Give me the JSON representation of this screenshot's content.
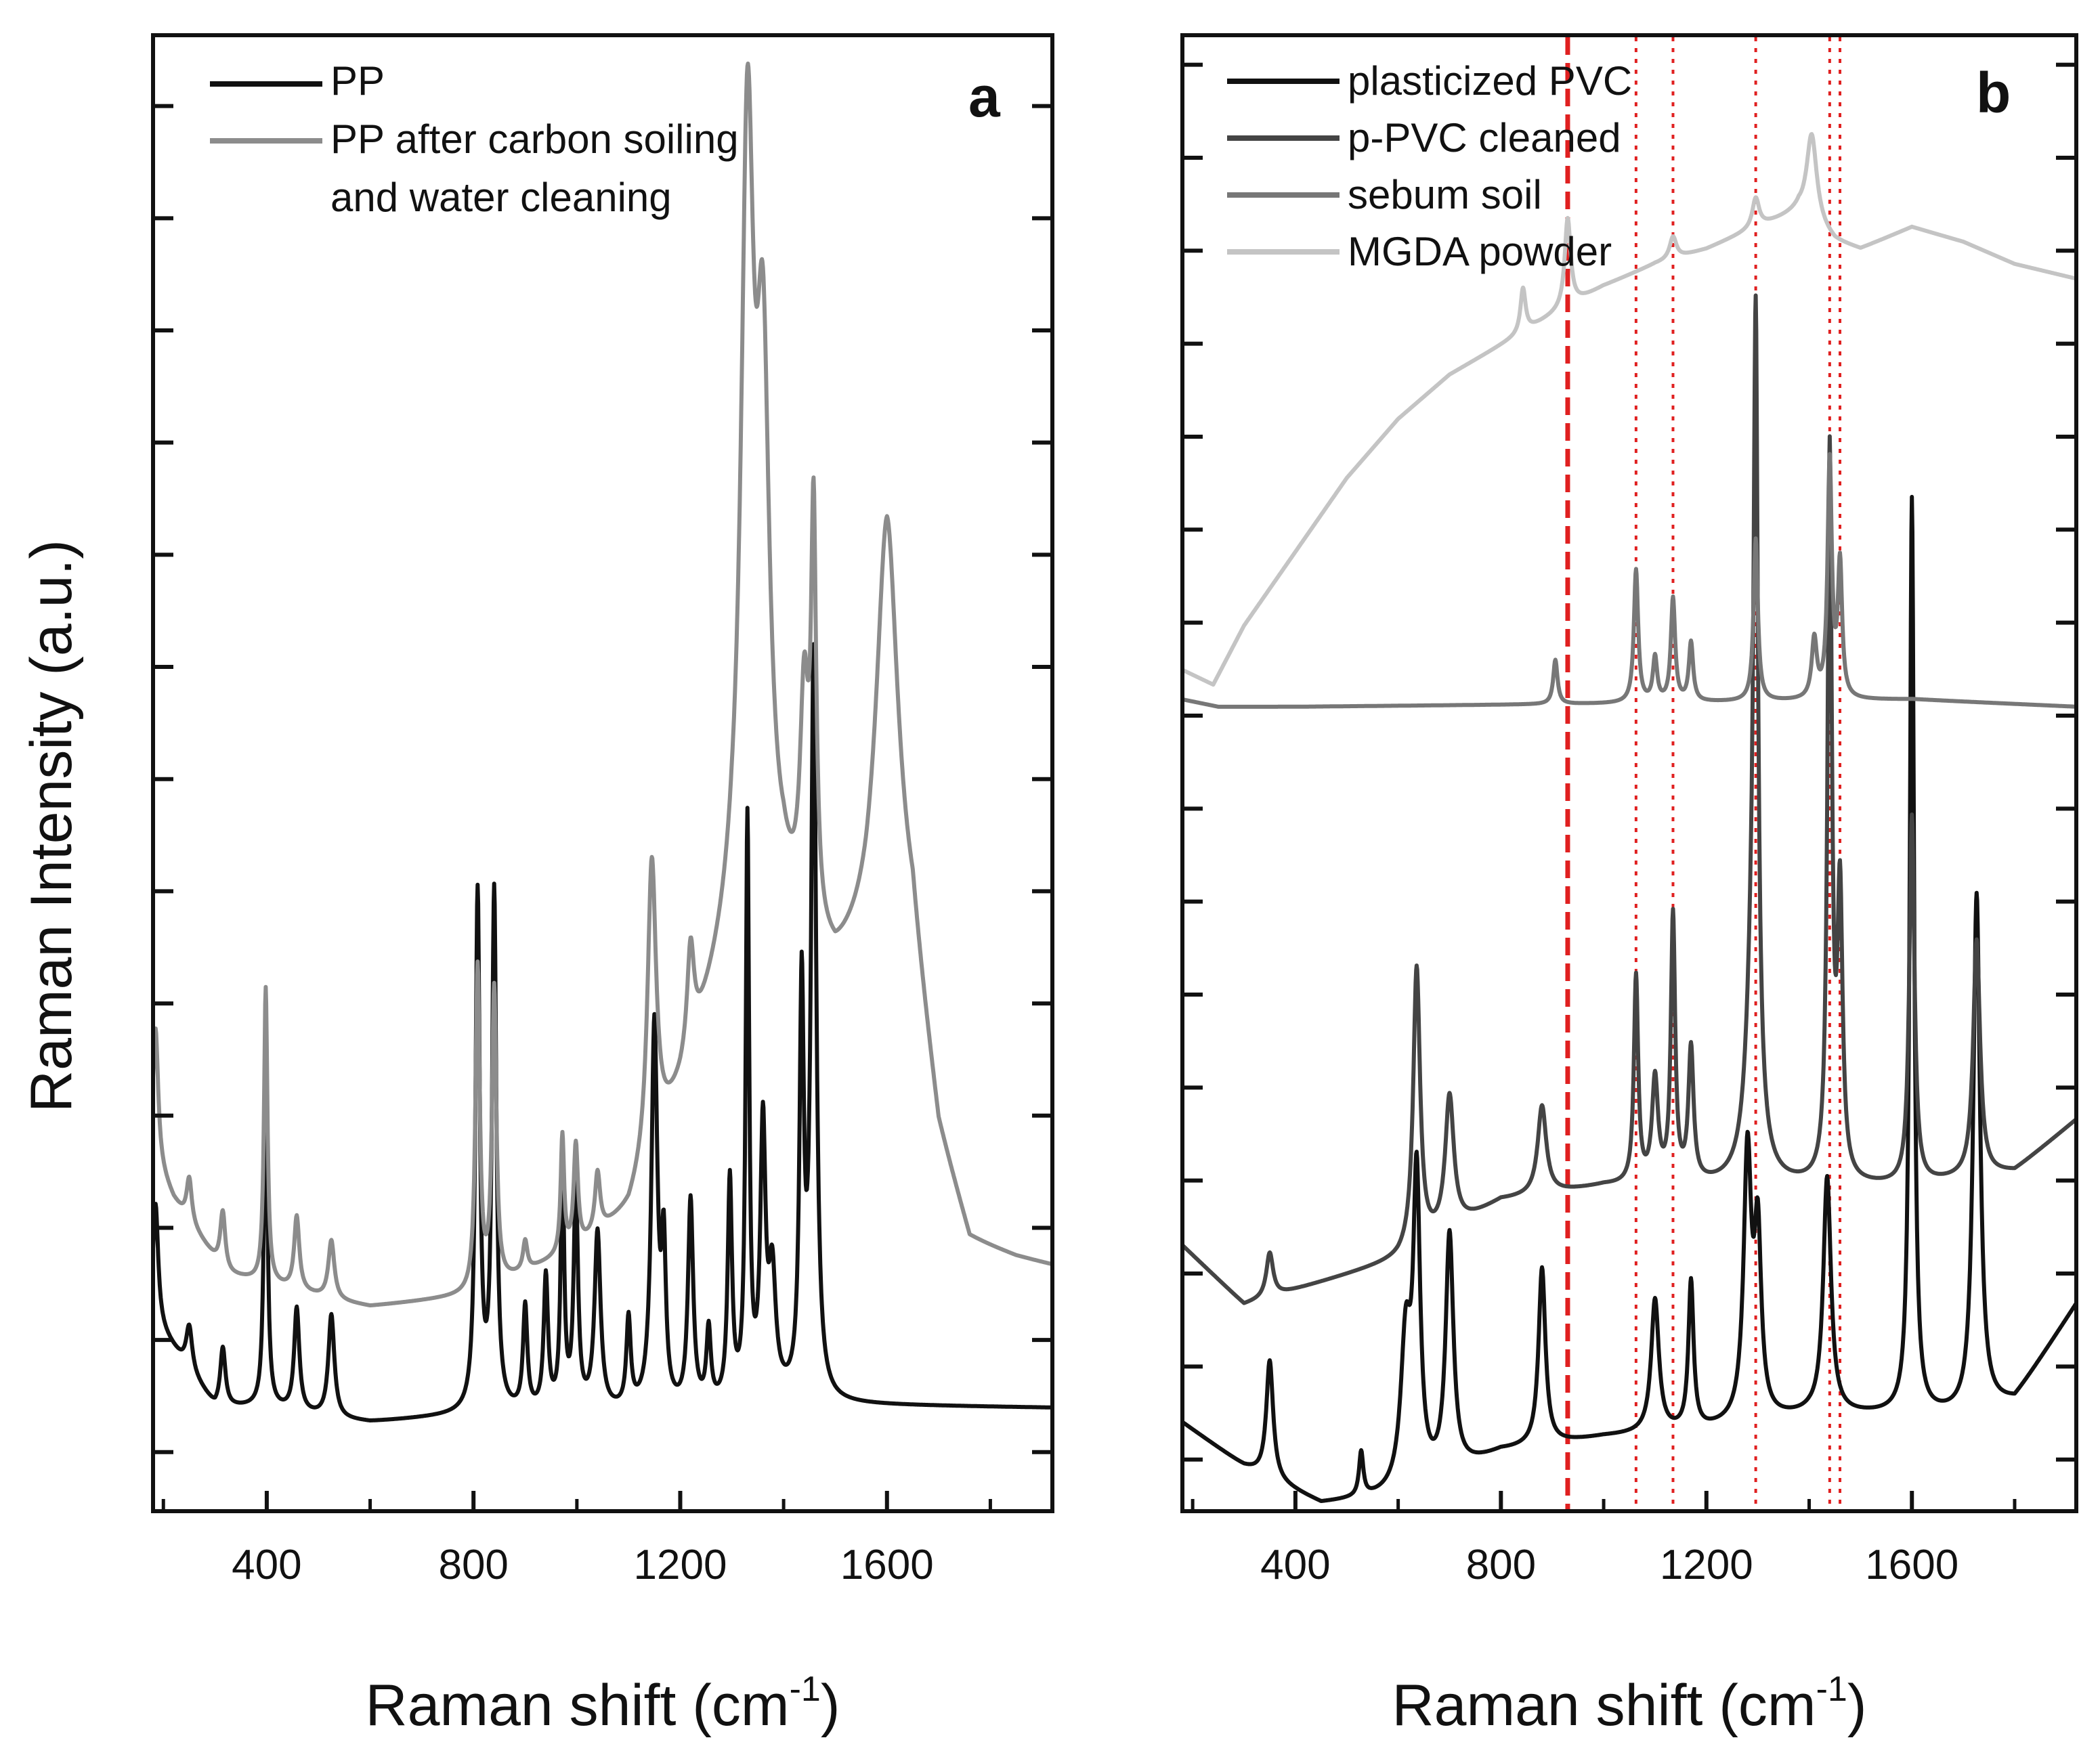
{
  "figure": {
    "y_axis_label": "Raman Intensity (a.u.)",
    "x_axis_label_main": "Raman shift (cm",
    "x_axis_label_sup": "-1",
    "x_axis_label_close": ")"
  },
  "chart_data": [
    {
      "type": "line",
      "panel_label": "a",
      "xlabel": "Raman shift (cm-1)",
      "ylabel": "Raman Intensity (a.u.)",
      "xlim": [
        180,
        1920
      ],
      "ylim": [
        0,
        100
      ],
      "xticks": [
        400,
        800,
        1200,
        1600
      ],
      "xtick_labels": [
        "400",
        "800",
        "1200",
        "1600"
      ],
      "ytick_values": [
        4,
        11.6,
        19.2,
        26.8,
        34.4,
        42,
        49.6,
        57.2,
        64.8,
        72.4,
        80,
        87.6,
        95.2
      ],
      "legend_position": "top-left",
      "series": [
        {
          "name": "PP",
          "legend_lines": [
            "PP"
          ],
          "color": "#111111",
          "baseline": [
            [
              180,
              13
            ],
            [
              200,
              12
            ],
            [
              300,
              7
            ],
            [
              400,
              7
            ],
            [
              530,
              6.2
            ],
            [
              600,
              6
            ],
            [
              800,
              6.5
            ],
            [
              1000,
              6.6
            ],
            [
              1200,
              6.6
            ],
            [
              1400,
              7.4
            ],
            [
              1500,
              7.2
            ],
            [
              1920,
              7
            ]
          ],
          "peaks": [
            [
              185,
              8,
              6
            ],
            [
              250,
              3,
              7
            ],
            [
              315,
              4,
              6
            ],
            [
              398,
              24,
              4
            ],
            [
              458,
              7,
              6
            ],
            [
              525,
              7,
              7
            ],
            [
              808,
              35,
              5
            ],
            [
              840,
              35,
              5
            ],
            [
              900,
              7,
              5
            ],
            [
              940,
              9,
              5
            ],
            [
              972,
              17,
              4
            ],
            [
              998,
              15,
              5
            ],
            [
              1040,
              12,
              7
            ],
            [
              1100,
              6,
              5
            ],
            [
              1150,
              26,
              7
            ],
            [
              1168,
              10,
              5
            ],
            [
              1220,
              14,
              6
            ],
            [
              1255,
              5,
              5
            ],
            [
              1296,
              15,
              5
            ],
            [
              1330,
              39,
              4
            ],
            [
              1360,
              18,
              6
            ],
            [
              1378,
              8,
              8
            ],
            [
              1435,
              27,
              5
            ],
            [
              1458,
              50,
              6
            ]
          ]
        },
        {
          "name": "PP after carbon soiling and water cleaning",
          "legend_lines": [
            "PP after carbon soiling",
            "and water cleaning"
          ],
          "color": "#8c8c8c",
          "baseline": [
            [
              180,
              24
            ],
            [
              220,
              21
            ],
            [
              320,
              16
            ],
            [
              420,
              15.2
            ],
            [
              530,
              14.2
            ],
            [
              600,
              13.8
            ],
            [
              800,
              14.5
            ],
            [
              900,
              16
            ],
            [
              1000,
              17.5
            ],
            [
              1100,
              20
            ],
            [
              1200,
              28
            ],
            [
              1300,
              38
            ],
            [
              1400,
              40
            ],
            [
              1430,
              38
            ],
            [
              1500,
              36
            ],
            [
              1560,
              38
            ],
            [
              1600,
              41
            ],
            [
              1650,
              38
            ],
            [
              1700,
              25
            ],
            [
              1760,
              18
            ],
            [
              1850,
              17
            ],
            [
              1920,
              16.5
            ]
          ],
          "peaks": [
            [
              185,
              9,
              6
            ],
            [
              250,
              3,
              6
            ],
            [
              315,
              4,
              6
            ],
            [
              398,
              20,
              4
            ],
            [
              458,
              5,
              6
            ],
            [
              525,
              4,
              7
            ],
            [
              808,
              22,
              5
            ],
            [
              840,
              20,
              5
            ],
            [
              900,
              2,
              5
            ],
            [
              972,
              8,
              4
            ],
            [
              998,
              7,
              5
            ],
            [
              1040,
              4,
              6
            ],
            [
              1145,
              20,
              10
            ],
            [
              1220,
              7,
              8
            ],
            [
              1330,
              52,
              15
            ],
            [
              1360,
              34,
              15
            ],
            [
              1440,
              15,
              10
            ],
            [
              1458,
              27,
              6
            ],
            [
              1600,
              26,
              25
            ]
          ]
        }
      ]
    },
    {
      "type": "line",
      "panel_label": "b",
      "xlabel": "Raman shift (cm-1)",
      "ylabel": "Raman Intensity (a.u.)",
      "xlim": [
        180,
        1920
      ],
      "ylim": [
        0,
        100
      ],
      "xticks": [
        400,
        800,
        1200,
        1600
      ],
      "xtick_labels": [
        "400",
        "800",
        "1200",
        "1600"
      ],
      "ytick_values": [
        3.5,
        9.8,
        16.1,
        22.4,
        28.7,
        35,
        41.3,
        47.6,
        53.9,
        60.2,
        66.5,
        72.8,
        79.1,
        85.4,
        91.7,
        98
      ],
      "legend_position": "top-left",
      "reference_lines": [
        {
          "x": 930,
          "style": "dashed"
        },
        {
          "x": 1063,
          "style": "dotted"
        },
        {
          "x": 1135,
          "style": "dotted"
        },
        {
          "x": 1296,
          "style": "dotted"
        },
        {
          "x": 1440,
          "style": "dotted"
        },
        {
          "x": 1460,
          "style": "dotted"
        }
      ],
      "reference_line_color": "#e02020",
      "series": [
        {
          "name": "plasticized PVC",
          "legend_lines": [
            "plasticized PVC"
          ],
          "color": "#111111",
          "baseline": [
            [
              180,
              6
            ],
            [
              300,
              3
            ],
            [
              450,
              0.5
            ],
            [
              600,
              1
            ],
            [
              700,
              2.5
            ],
            [
              800,
              4
            ],
            [
              1000,
              5
            ],
            [
              1200,
              5.5
            ],
            [
              1400,
              6.5
            ],
            [
              1550,
              6.5
            ],
            [
              1700,
              6.5
            ],
            [
              1800,
              7.5
            ],
            [
              1920,
              14
            ]
          ],
          "peaks": [
            [
              350,
              8,
              8
            ],
            [
              528,
              3,
              5
            ],
            [
              615,
              10,
              12
            ],
            [
              636,
              20,
              8
            ],
            [
              700,
              16,
              9
            ],
            [
              880,
              12,
              8
            ],
            [
              1100,
              9,
              9
            ],
            [
              1170,
              10,
              6
            ],
            [
              1280,
              18,
              9
            ],
            [
              1300,
              12,
              8
            ],
            [
              1435,
              16,
              9
            ],
            [
              1600,
              62,
              5
            ],
            [
              1726,
              35,
              8
            ]
          ]
        },
        {
          "name": "p-PVC cleaned",
          "legend_lines": [
            "p-PVC cleaned"
          ],
          "color": "#444444",
          "baseline": [
            [
              180,
              18
            ],
            [
              300,
              14
            ],
            [
              500,
              16
            ],
            [
              600,
              17
            ],
            [
              700,
              19
            ],
            [
              800,
              21
            ],
            [
              1000,
              22
            ],
            [
              1200,
              22
            ],
            [
              1400,
              22
            ],
            [
              1600,
              22
            ],
            [
              1800,
              23
            ],
            [
              1920,
              26.5
            ]
          ],
          "peaks": [
            [
              350,
              3,
              8
            ],
            [
              636,
              19,
              8
            ],
            [
              700,
              9,
              10
            ],
            [
              880,
              6,
              10
            ],
            [
              1063,
              14,
              5
            ],
            [
              1100,
              7,
              7
            ],
            [
              1135,
              18,
              5
            ],
            [
              1170,
              9,
              6
            ],
            [
              1296,
              49,
              5
            ],
            [
              1290,
              13,
              15
            ],
            [
              1440,
              49,
              5
            ],
            [
              1460,
              19,
              6
            ],
            [
              1600,
              25,
              6
            ],
            [
              1726,
              16,
              8
            ]
          ]
        },
        {
          "name": "sebum soil",
          "legend_lines": [
            "sebum soil"
          ],
          "color": "#777777",
          "baseline": [
            [
              180,
              55
            ],
            [
              250,
              54.5
            ],
            [
              400,
              54.5
            ],
            [
              1000,
              54.7
            ],
            [
              1600,
              55
            ],
            [
              1920,
              54.5
            ]
          ],
          "peaks": [
            [
              906,
              3,
              5
            ],
            [
              1063,
              9,
              5
            ],
            [
              1100,
              3,
              5
            ],
            [
              1135,
              7,
              5
            ],
            [
              1170,
              4,
              5
            ],
            [
              1296,
              11,
              5
            ],
            [
              1410,
              4,
              6
            ],
            [
              1440,
              16,
              5
            ],
            [
              1460,
              9,
              5
            ]
          ]
        },
        {
          "name": "MGDA powder",
          "legend_lines": [
            "MGDA powder"
          ],
          "color": "#c4c4c4",
          "baseline": [
            [
              180,
              57
            ],
            [
              240,
              56
            ],
            [
              300,
              60
            ],
            [
              400,
              65
            ],
            [
              500,
              70
            ],
            [
              600,
              74
            ],
            [
              700,
              77
            ],
            [
              800,
              79
            ],
            [
              900,
              81
            ],
            [
              1000,
              83
            ],
            [
              1100,
              84.5
            ],
            [
              1200,
              85.5
            ],
            [
              1300,
              87
            ],
            [
              1380,
              88
            ],
            [
              1450,
              86
            ],
            [
              1500,
              85.5
            ],
            [
              1600,
              87
            ],
            [
              1700,
              86
            ],
            [
              1800,
              84.5
            ],
            [
              1920,
              83.5
            ]
          ],
          "peaks": [
            [
              843,
              3,
              6
            ],
            [
              930,
              6,
              7
            ],
            [
              1135,
              1.5,
              8
            ],
            [
              1296,
              2,
              8
            ],
            [
              1405,
              6,
              12
            ]
          ]
        }
      ]
    }
  ]
}
